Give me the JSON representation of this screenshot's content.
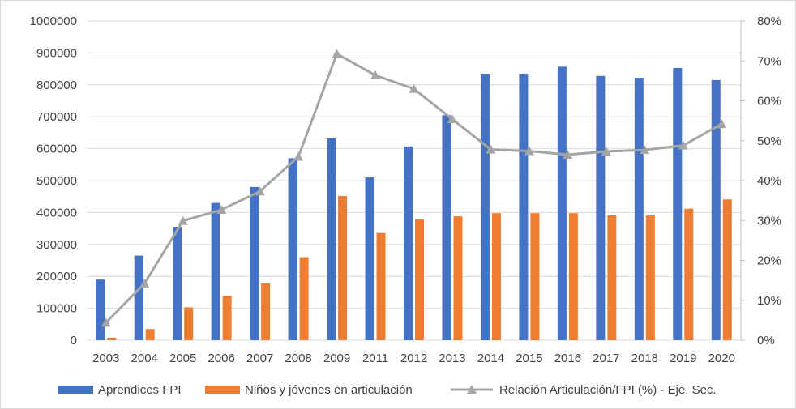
{
  "chart_data": {
    "type": "bar",
    "categories": [
      "2003",
      "2004",
      "2005",
      "2006",
      "2007",
      "2008",
      "2009",
      "2011",
      "2012",
      "2013",
      "2014",
      "2015",
      "2016",
      "2017",
      "2018",
      "2019",
      "2020"
    ],
    "series": [
      {
        "name": "Aprendices FPI",
        "kind": "bar",
        "axis": "left",
        "color": "#4472C4",
        "values": [
          190000,
          265000,
          355000,
          430000,
          480000,
          570000,
          632000,
          510000,
          607000,
          705000,
          835000,
          835000,
          857000,
          828000,
          822000,
          853000,
          815000
        ]
      },
      {
        "name": "Niños y jóvenes en articulación",
        "kind": "bar",
        "axis": "left",
        "color": "#ED7D31",
        "values": [
          8000,
          35000,
          103000,
          139000,
          178000,
          260000,
          452000,
          336000,
          379000,
          388000,
          398000,
          398000,
          398000,
          391000,
          391000,
          412000,
          441000
        ]
      },
      {
        "name": "Relación Articulación/FPI (%) - Eje. Sec.",
        "kind": "line",
        "axis": "right",
        "color": "#A5A5A5",
        "marker": "triangle",
        "values": [
          4.4,
          14.2,
          29.9,
          32.7,
          37.3,
          46.0,
          71.8,
          66.4,
          63.0,
          55.4,
          47.8,
          47.4,
          46.5,
          47.3,
          47.7,
          48.8,
          54.2
        ]
      }
    ],
    "y_left": {
      "ylim": [
        0,
        1000000
      ],
      "ticks": [
        "0",
        "100000",
        "200000",
        "300000",
        "400000",
        "500000",
        "600000",
        "700000",
        "800000",
        "900000",
        "1000000"
      ]
    },
    "y_right": {
      "ylim": [
        0,
        80
      ],
      "ticks": [
        "0%",
        "10%",
        "20%",
        "30%",
        "40%",
        "50%",
        "60%",
        "70%",
        "80%"
      ]
    },
    "grid": true,
    "legend_position": "bottom"
  }
}
